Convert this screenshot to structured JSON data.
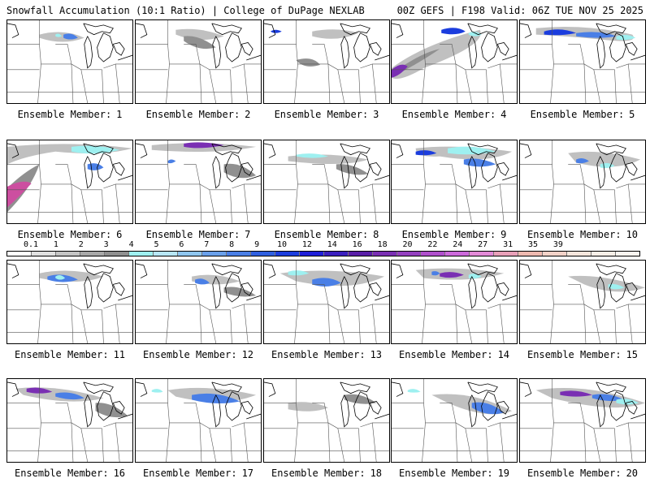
{
  "header": {
    "left": "Snowfall Accumulation (10:1 Ratio) | College of DuPage NEXLAB",
    "right": "00Z GEFS | F198 Valid: 06Z TUE NOV 25 2025"
  },
  "panel_label": "Ensemble Member:",
  "members": [
    "1",
    "2",
    "3",
    "4",
    "5",
    "6",
    "7",
    "8",
    "9",
    "10",
    "11",
    "12",
    "13",
    "14",
    "15",
    "16",
    "17",
    "18",
    "19",
    "20"
  ],
  "colorbar": {
    "labels": [
      "0.1",
      "1",
      "2",
      "3",
      "4",
      "5",
      "6",
      "7",
      "8",
      "9",
      "10",
      "12",
      "14",
      "16",
      "18",
      "20",
      "22",
      "24",
      "27",
      "31",
      "35",
      "39"
    ],
    "colors": [
      "#ffffff",
      "#e0e0e0",
      "#c4c4c4",
      "#a8a8a8",
      "#909090",
      "#9ef0f0",
      "#b7e6f5",
      "#8fc6ef",
      "#6aa0ea",
      "#4a7fe6",
      "#2f5fe0",
      "#1b3dde",
      "#1f1fd9",
      "#3b1fbf",
      "#5a1fa8",
      "#7a2fb3",
      "#9440c0",
      "#b050cc",
      "#cc6adb",
      "#e38ad7",
      "#e8a0b8",
      "#eeb9b0",
      "#f2d2c8",
      "#f6e6dd",
      "#f8efe8",
      "#fbf5f0"
    ]
  },
  "colors": {
    "border": "#000000",
    "state_line": "#555555",
    "coast": "#000000",
    "snow_light": "#c0c0c0",
    "snow_mid": "#909090",
    "snow_cyan": "#9ef0f0",
    "snow_blue": "#4a7fe6",
    "snow_dark": "#1b3dde",
    "snow_purple": "#7a2fb3",
    "snow_magenta": "#cc4fa0"
  }
}
